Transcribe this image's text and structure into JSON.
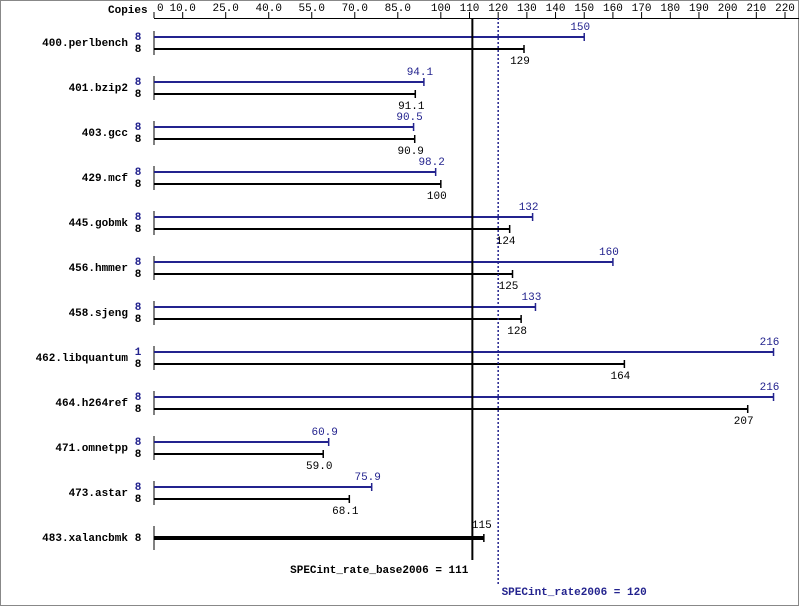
{
  "chart_data": {
    "type": "bar",
    "orientation": "horizontal",
    "x_label": "Copies",
    "xlim": [
      0,
      220
    ],
    "xticks": [
      0,
      {
        "value": 10,
        "label": "10.0"
      },
      {
        "value": 25,
        "label": "25.0"
      },
      {
        "value": 40,
        "label": "40.0"
      },
      {
        "value": 55,
        "label": "55.0"
      },
      {
        "value": 70,
        "label": "70.0"
      },
      {
        "value": 85,
        "label": "85.0"
      },
      100,
      110,
      120,
      130,
      140,
      150,
      160,
      170,
      180,
      190,
      200,
      210,
      220
    ],
    "categories": [
      "400.perlbench",
      "401.bzip2",
      "403.gcc",
      "429.mcf",
      "445.gobmk",
      "456.hmmer",
      "458.sjeng",
      "462.libquantum",
      "464.h264ref",
      "471.omnetpp",
      "473.astar",
      "483.xalancbmk"
    ],
    "series": [
      {
        "color": "#23238e",
        "copies": [
          8,
          8,
          8,
          8,
          8,
          8,
          8,
          1,
          8,
          8,
          8,
          null
        ],
        "values": [
          150,
          94.1,
          90.5,
          98.2,
          132,
          160,
          133,
          216,
          216,
          60.9,
          75.9,
          null
        ]
      },
      {
        "color": "#000000",
        "copies": [
          8,
          8,
          8,
          8,
          8,
          8,
          8,
          8,
          8,
          8,
          8,
          8
        ],
        "values": [
          129,
          91.1,
          90.9,
          100,
          124,
          125,
          128,
          164,
          207,
          59,
          68.1,
          115
        ],
        "value_labels": [
          "129",
          "91.1",
          "90.9",
          "100",
          "124",
          "125",
          "128",
          "164",
          "207",
          "59.0",
          "68.1",
          "115"
        ]
      }
    ],
    "reference_lines": [
      {
        "label": "SPECint_rate_base2006 = 111",
        "value": 111,
        "color": "#000000",
        "style": "solid"
      },
      {
        "label": "SPECint_rate2006 = 120",
        "value": 120,
        "color": "#23238e",
        "style": "dotted"
      }
    ]
  }
}
